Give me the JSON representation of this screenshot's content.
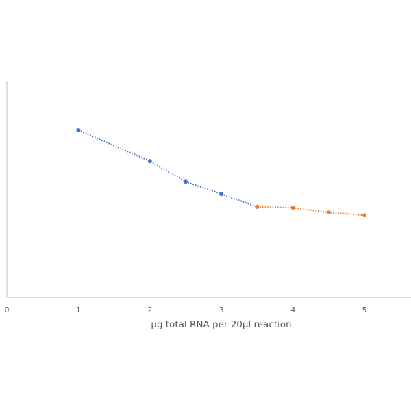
{
  "chart_data": {
    "type": "scatter",
    "title": "",
    "xlabel": "µg total RNA per 20µl reaction",
    "ylabel": "",
    "xlim": [
      0,
      5.65
    ],
    "ylim": [
      0,
      1
    ],
    "x_ticks": [
      "0",
      "1",
      "2",
      "3",
      "4",
      "5"
    ],
    "grid": false,
    "legend": "none",
    "series": [
      {
        "color": "#4472c4",
        "trendline": "dotted",
        "points": [
          {
            "x": 1,
            "y": 0.772
          },
          {
            "x": 2,
            "y": 0.629
          },
          {
            "x": 2.5,
            "y": 0.534
          },
          {
            "x": 3,
            "y": 0.477
          },
          {
            "x": 3.5,
            "y": 0.418
          }
        ]
      },
      {
        "color": "#ed7d31",
        "trendline": "dotted",
        "points": [
          {
            "x": 3.5,
            "y": 0.418
          },
          {
            "x": 4,
            "y": 0.414
          },
          {
            "x": 4.5,
            "y": 0.392
          },
          {
            "x": 5,
            "y": 0.379
          }
        ]
      }
    ]
  }
}
